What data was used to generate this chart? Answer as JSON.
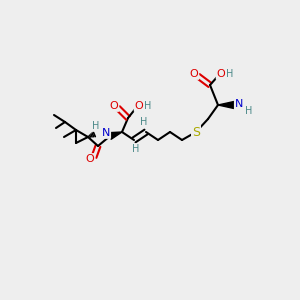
{
  "bg": "#eeeeee",
  "figsize": [
    3.0,
    3.0
  ],
  "dpi": 100,
  "bond_lw": 1.5,
  "fs": 8.0,
  "fsh": 7.0,
  "colors": {
    "C": "#000000",
    "O": "#dd0000",
    "N": "#0000cc",
    "S": "#aaaa00",
    "H": "#4a8888"
  }
}
